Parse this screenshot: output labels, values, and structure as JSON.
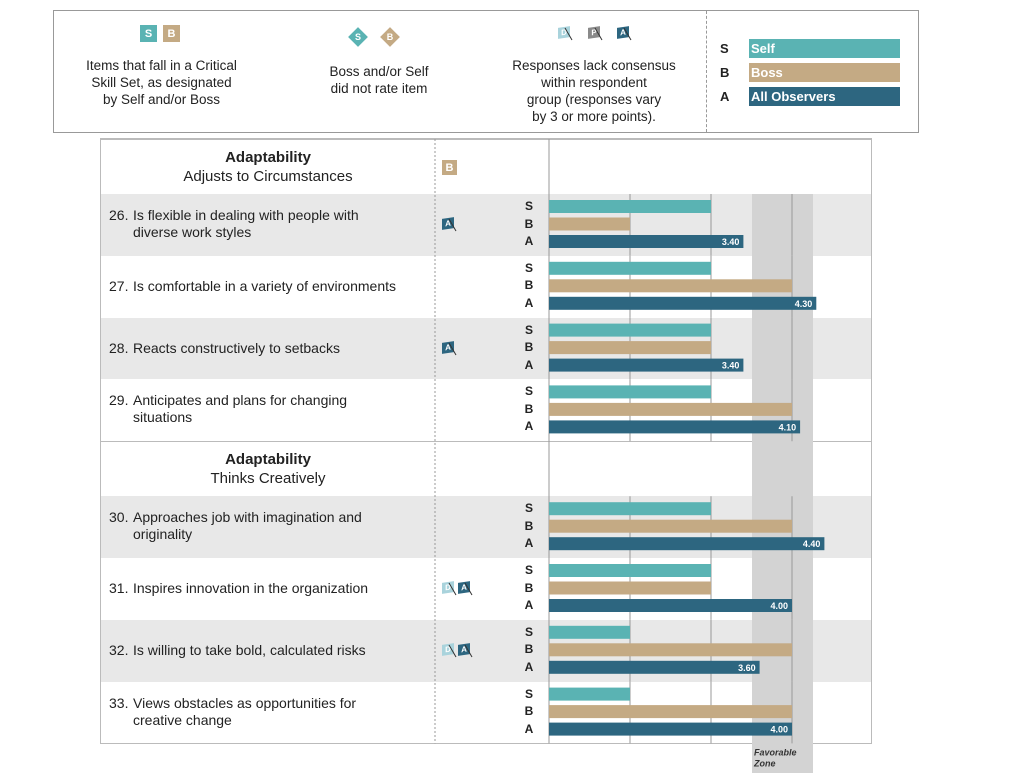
{
  "legend": {
    "critical_skill": {
      "s": "S",
      "b": "B",
      "text": [
        "Items that fall in a Critical",
        "Skill Set, as designated",
        "by Self and/or Boss"
      ]
    },
    "not_rated": {
      "s": "S",
      "b": "B",
      "text": [
        "Boss and/or Self",
        "did not rate item"
      ]
    },
    "consensus": {
      "flags": [
        "D",
        "P",
        "A"
      ],
      "text": [
        "Responses lack consensus",
        "within respondent",
        "group (responses vary",
        "by 3 or more points)."
      ]
    },
    "keys": [
      {
        "letter": "S",
        "label": "Self",
        "color": "#5ab3b3"
      },
      {
        "letter": "B",
        "label": "Boss",
        "color": "#c4aa84"
      },
      {
        "letter": "A",
        "label": "All Observers",
        "color": "#2d6680"
      }
    ]
  },
  "colors": {
    "self": "#5ab3b3",
    "boss": "#c4aa84",
    "observers": "#2d6680",
    "zone": "#d3d3d3",
    "gray_flag": "#8a8a8a",
    "light_flag": "#a9d3dc"
  },
  "sections": [
    {
      "title": "Adaptability",
      "subtitle": "Adjusts to Circumstances",
      "badge": "B"
    },
    {
      "title": "Adaptability",
      "subtitle": "Thinks Creatively",
      "badge": ""
    }
  ],
  "row_letters": [
    "S",
    "B",
    "A"
  ],
  "favorable_zone": {
    "label1": "Favorable",
    "label2": "Zone",
    "range": [
      4.5,
      5.0
    ]
  },
  "chart_data": {
    "type": "bar",
    "orientation": "horizontal",
    "xlim": [
      1,
      5.0
    ],
    "gridlines": [
      2,
      3,
      4,
      4.5
    ],
    "items": [
      {
        "num": "26.",
        "lines": [
          "Is flexible in dealing with people with",
          "diverse work styles"
        ],
        "self": 3,
        "boss": 2,
        "observers": 3.4,
        "label": "3.40",
        "flags": [
          "A"
        ]
      },
      {
        "num": "27.",
        "lines": [
          "Is comfortable in a variety of environments"
        ],
        "self": 3,
        "boss": 4,
        "observers": 4.3,
        "label": "4.30",
        "flags": []
      },
      {
        "num": "28.",
        "lines": [
          "Reacts constructively to setbacks"
        ],
        "self": 3,
        "boss": 3,
        "observers": 3.4,
        "label": "3.40",
        "flags": [
          "A"
        ]
      },
      {
        "num": "29.",
        "lines": [
          "Anticipates and plans for changing",
          "situations"
        ],
        "self": 3,
        "boss": 4,
        "observers": 4.1,
        "label": "4.10",
        "flags": []
      },
      {
        "num": "30.",
        "lines": [
          "Approaches job with imagination and",
          "originality"
        ],
        "self": 3,
        "boss": 4,
        "observers": 4.4,
        "label": "4.40",
        "flags": []
      },
      {
        "num": "31.",
        "lines": [
          "Inspires innovation in the organization"
        ],
        "self": 3,
        "boss": 3,
        "observers": 4.0,
        "label": "4.00",
        "flags": [
          "D",
          "A"
        ]
      },
      {
        "num": "32.",
        "lines": [
          "Is willing to take bold, calculated risks"
        ],
        "self": 2,
        "boss": 4,
        "observers": 3.6,
        "label": "3.60",
        "flags": [
          "D",
          "A"
        ]
      },
      {
        "num": "33.",
        "lines": [
          "Views obstacles as opportunities for",
          "creative change"
        ],
        "self": 2,
        "boss": 4,
        "observers": 4.0,
        "label": "4.00",
        "flags": []
      }
    ]
  }
}
